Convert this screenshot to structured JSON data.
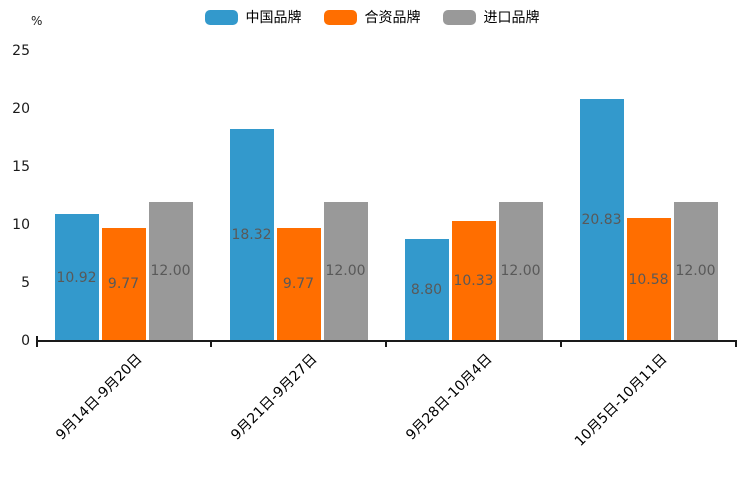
{
  "chart_data": {
    "type": "bar",
    "title": "",
    "ylabel": "%",
    "categories": [
      "9月14日-9月20日",
      "9月21日-9月27日",
      "9月28日-10月4日",
      "10月5日-10月11日"
    ],
    "series": [
      {
        "name": "中国品牌",
        "color": "#3399CC",
        "values": [
          10.92,
          18.32,
          8.8,
          20.83
        ]
      },
      {
        "name": "合资品牌",
        "color": "#FF6E00",
        "values": [
          9.77,
          9.77,
          10.33,
          10.58
        ]
      },
      {
        "name": "进口品牌",
        "color": "#999999",
        "values": [
          12.0,
          12.0,
          12.0,
          12.0
        ]
      }
    ],
    "value_labels": [
      [
        "10.92",
        "9.77",
        "12.00"
      ],
      [
        "18.32",
        "9.77",
        "12.00"
      ],
      [
        "8.80",
        "10.33",
        "12.00"
      ],
      [
        "20.83",
        "10.58",
        "12.00"
      ]
    ],
    "y_ticks": [
      "0",
      "5",
      "10",
      "15",
      "20",
      "25"
    ],
    "ylim": [
      0,
      25
    ],
    "grid": false,
    "legend_position": "top-center",
    "colors": {
      "axis": "#1a1a1a",
      "tick_text": "#1a1a1a",
      "x_label_text": "#000000",
      "bar_value_text": "#595959",
      "background": "#ffffff"
    }
  }
}
